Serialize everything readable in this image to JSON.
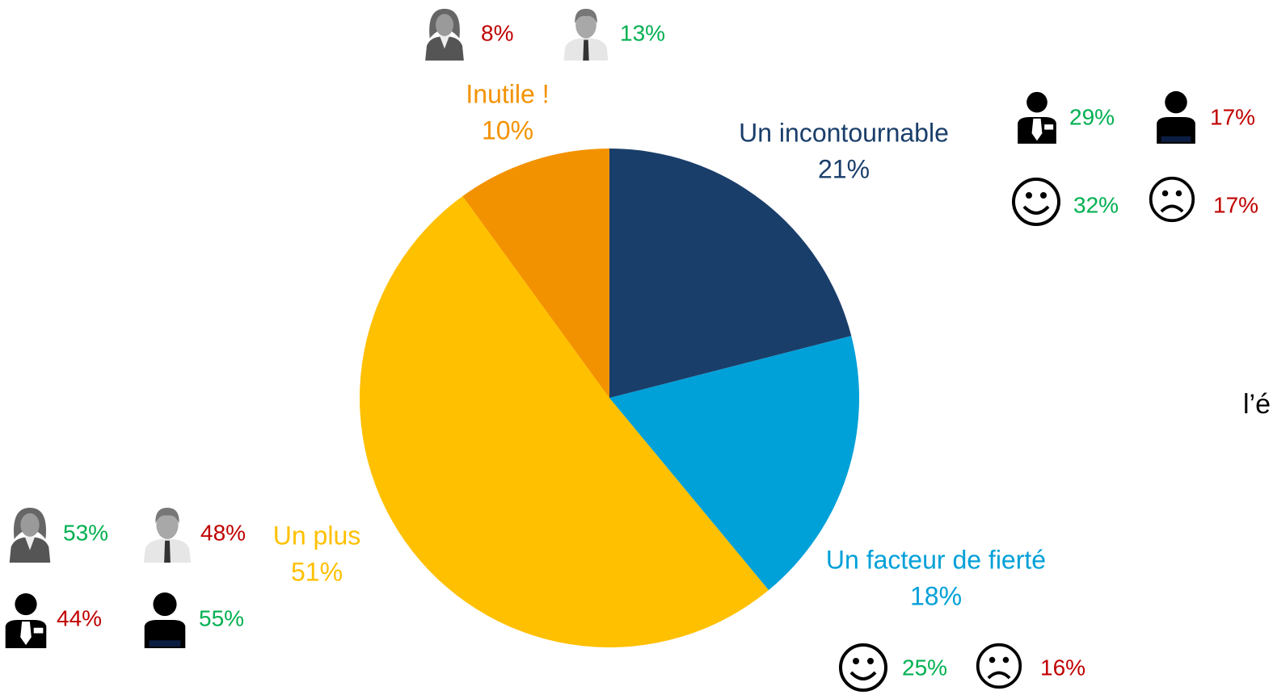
{
  "chart_data": {
    "type": "pie",
    "categories": [
      "Un incontournable",
      "Un facteur de fierté",
      "Un plus",
      "Inutile !"
    ],
    "values": [
      21,
      18,
      51,
      10
    ],
    "value_labels": [
      "21%",
      "18%",
      "51%",
      "10%"
    ],
    "colors": [
      "#1a3e6a",
      "#00a0d8",
      "#ffc000",
      "#f39200"
    ],
    "annotations": [
      {
        "text": "8%",
        "color": "#c00000"
      },
      {
        "text": "13%",
        "color": "#00b050"
      },
      {
        "text": "29%",
        "color": "#00b050"
      },
      {
        "text": "17%",
        "color": "#c00000"
      },
      {
        "text": "32%",
        "color": "#00b050"
      },
      {
        "text": "17%",
        "color": "#c00000"
      },
      {
        "text": "53%",
        "color": "#00b050"
      },
      {
        "text": "48%",
        "color": "#c00000"
      },
      {
        "text": "44%",
        "color": "#c00000"
      },
      {
        "text": "55%",
        "color": "#00b050"
      },
      {
        "text": "25%",
        "color": "#00b050"
      },
      {
        "text": "16%",
        "color": "#c00000"
      }
    ],
    "side_text": "l’é"
  }
}
